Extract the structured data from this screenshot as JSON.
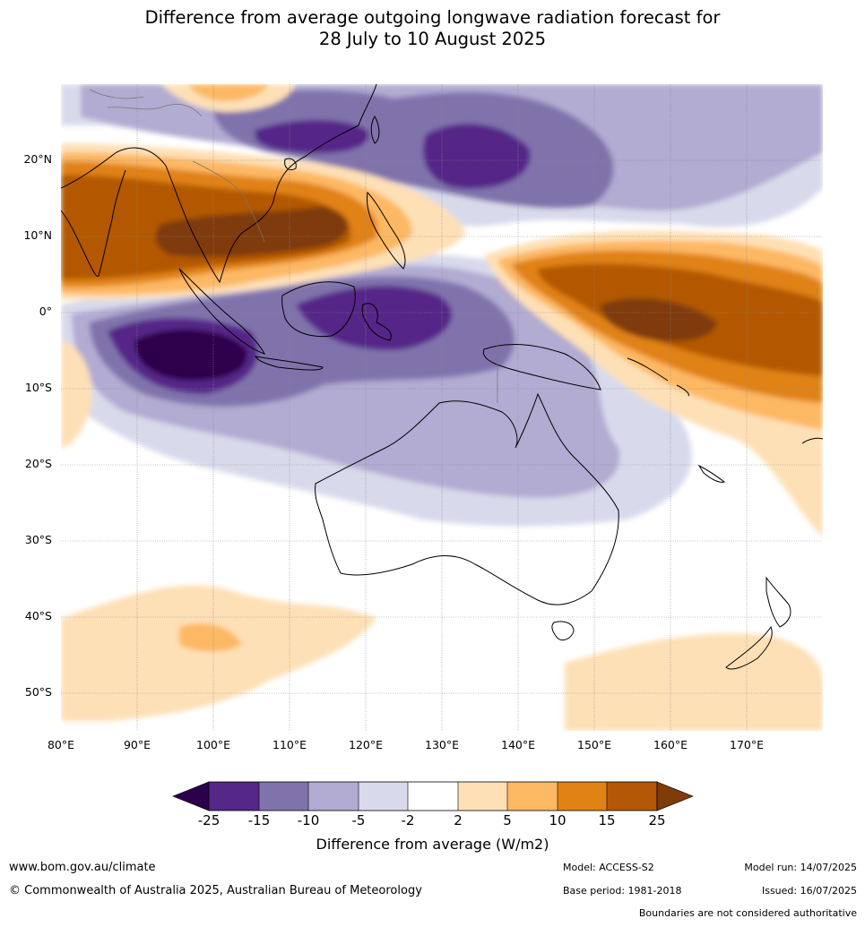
{
  "title_line1": "Difference from average outgoing longwave radiation forecast for",
  "title_line2": "28 July to 10 August 2025",
  "lat_ticks": [
    "20°N",
    "10°N",
    "0°",
    "10°S",
    "20°S",
    "30°S",
    "40°S",
    "50°S"
  ],
  "lon_ticks": [
    "80°E",
    "90°E",
    "100°E",
    "110°E",
    "120°E",
    "130°E",
    "140°E",
    "150°E",
    "160°E",
    "170°E"
  ],
  "colorbar": {
    "title": "Difference from average (W/m2)",
    "labels": [
      "-25",
      "-15",
      "-10",
      "-5",
      "-2",
      "2",
      "5",
      "10",
      "15",
      "25"
    ],
    "colors": {
      "below_min": "#2d004b",
      "c1": "#542788",
      "c2": "#8073ac",
      "c3": "#b2abd2",
      "c4": "#d8daeb",
      "c5": "#ffffff",
      "c6": "#fee0b6",
      "c7": "#fdb863",
      "c8": "#e08214",
      "c9": "#b35806",
      "above_max": "#7f3b08"
    }
  },
  "footer": {
    "website": "www.bom.gov.au/climate",
    "copyright": "© Commonwealth of Australia 2025, Australian Bureau of Meteorology",
    "model": "Model: ACCESS-S2",
    "base_period": "Base period: 1981-2018",
    "model_run": "Model run: 14/07/2025",
    "issued": "Issued: 16/07/2025",
    "disclaimer": "Boundaries are not considered authoritative"
  }
}
